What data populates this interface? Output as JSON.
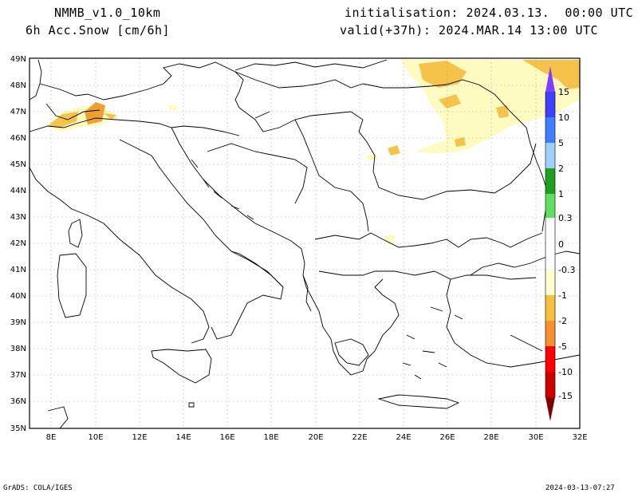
{
  "header": {
    "model": "NMMB_v1.0_10km",
    "variable": "6h Acc.Snow [cm/6h]",
    "init": "initialisation: 2024.03.13.  00:00 UTC",
    "valid": "valid(+37h): 2024.MAR.14 13:00 UTC"
  },
  "footer": {
    "left": "GrADS: COLA/IGES",
    "right": "2024-03-13-07:27"
  },
  "map": {
    "lat_ticks": [
      "49N",
      "48N",
      "47N",
      "46N",
      "45N",
      "44N",
      "43N",
      "42N",
      "41N",
      "40N",
      "39N",
      "38N",
      "37N",
      "36N",
      "35N"
    ],
    "lon_ticks": [
      "8E",
      "10E",
      "12E",
      "14E",
      "16E",
      "18E",
      "20E",
      "22E",
      "24E",
      "26E",
      "28E",
      "30E",
      "32E"
    ],
    "lon_range": [
      7,
      32
    ],
    "lat_range": [
      35,
      49
    ]
  },
  "colorbar": {
    "labels": [
      "15",
      "10",
      "5",
      "2",
      "1",
      "0.3",
      "0",
      "-0.3",
      "-1",
      "-2",
      "-5",
      "-10",
      "-15"
    ],
    "colors": {
      "positive": [
        "#7f3fff",
        "#3f3fff",
        "#3f7fff",
        "#6fafef",
        "#9fcfff",
        "#1f9f1f",
        "#5fdf5f",
        "#9fff9f"
      ],
      "negative": [
        "#ffffcf",
        "#f7f7a0",
        "#f7c040",
        "#f79030",
        "#ff0000",
        "#cf0000",
        "#7f0000"
      ]
    }
  },
  "snow_colors": {
    "light": "#fdfbc0",
    "medium": "#f5c24a",
    "heavy": "#f0a030"
  }
}
